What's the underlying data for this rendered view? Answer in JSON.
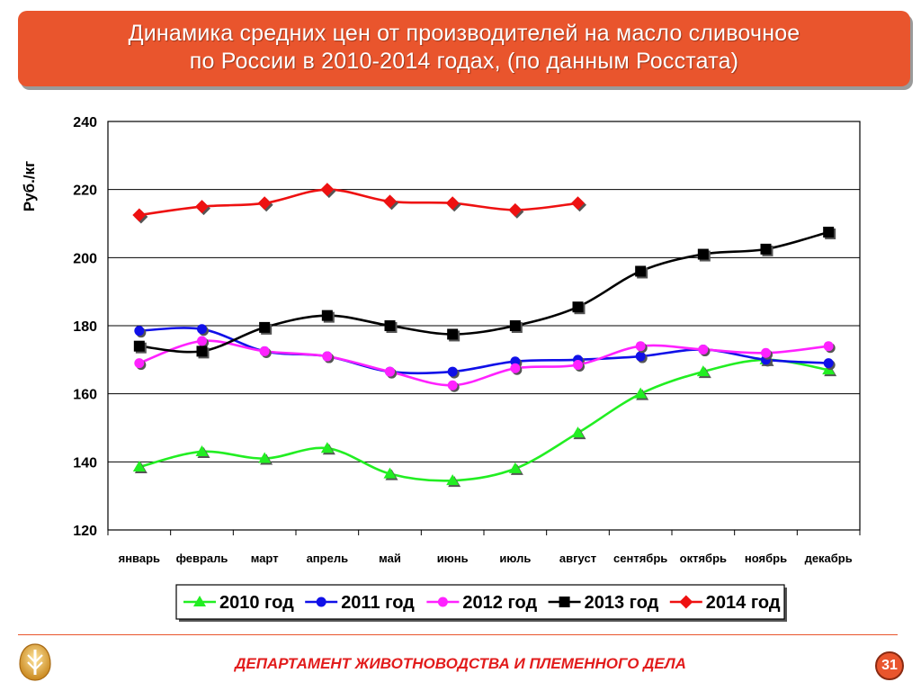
{
  "title": {
    "line1": "Динамика средних цен от производителей на масло сливочное",
    "line2": "по России в 2010-2014 годах, (по данным Росстата)"
  },
  "footer": {
    "department": "ДЕПАРТАМЕНТ ЖИВОТНОВОДСТВА И ПЛЕМЕННОГО ДЕЛА",
    "page_number": "31",
    "logo_icon": "wheat-emblem-icon"
  },
  "colors": {
    "banner": "#e9552d",
    "footer_text": "#e21c1c"
  },
  "chart_data": {
    "type": "line",
    "ylabel": "Руб./кг",
    "xlabel": "",
    "ylim": [
      120,
      240
    ],
    "yticks": [
      120,
      140,
      160,
      180,
      200,
      220,
      240
    ],
    "grid": true,
    "legend_position": "bottom",
    "categories": [
      "январь",
      "февраль",
      "март",
      "апрель",
      "май",
      "июнь",
      "июль",
      "август",
      "сентябрь",
      "октябрь",
      "ноябрь",
      "декабрь"
    ],
    "series": [
      {
        "name": "2010 год",
        "color": "#22ee22",
        "marker": "triangle",
        "values": [
          138.5,
          143,
          141,
          144,
          136.5,
          134.5,
          138,
          148.5,
          160,
          166.5,
          170,
          167
        ]
      },
      {
        "name": "2011 год",
        "color": "#1010e8",
        "marker": "circle",
        "values": [
          178.5,
          179,
          172.5,
          171,
          166.5,
          166.5,
          169.5,
          170,
          171,
          173,
          170,
          169
        ]
      },
      {
        "name": "2012 год",
        "color": "#ff22ff",
        "marker": "circle",
        "values": [
          169,
          175.5,
          172.5,
          171,
          166.5,
          162.5,
          167.5,
          168.5,
          174,
          173,
          172,
          174
        ]
      },
      {
        "name": "2013 год",
        "color": "#000000",
        "marker": "square",
        "values": [
          174,
          172.5,
          179.5,
          183,
          180,
          177.5,
          180,
          185.5,
          196,
          201,
          202.5,
          207.5
        ]
      },
      {
        "name": "2014 год",
        "color": "#ee1111",
        "marker": "diamond",
        "values": [
          212.5,
          215,
          216,
          220,
          216.5,
          216,
          214,
          216,
          null,
          null,
          null,
          null
        ]
      }
    ]
  }
}
